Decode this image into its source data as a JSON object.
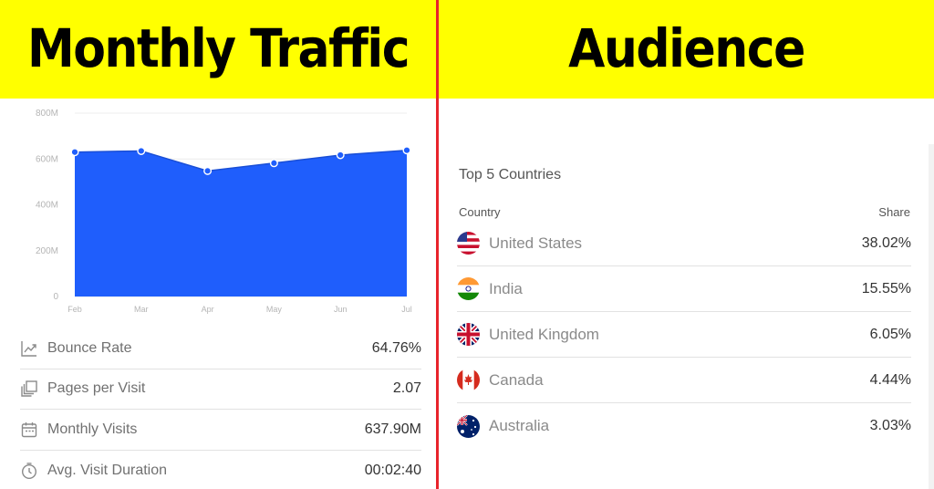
{
  "left_banner": {
    "title": "Monthly Traffic"
  },
  "right_banner": {
    "title": "Audience"
  },
  "chart_data": {
    "type": "area",
    "categories": [
      "Feb",
      "Mar",
      "Apr",
      "May",
      "Jun",
      "Jul"
    ],
    "values": [
      630,
      635,
      548,
      582,
      617,
      638
    ],
    "yticks": [
      "0",
      "200M",
      "400M",
      "600M",
      "800M"
    ],
    "ylim": [
      0,
      800
    ],
    "unit": "M",
    "grid": true,
    "color": "#1f5efc"
  },
  "metrics": [
    {
      "icon": "trend-line-icon",
      "label": "Bounce Rate",
      "value": "64.76%"
    },
    {
      "icon": "pages-stack-icon",
      "label": "Pages per Visit",
      "value": "2.07"
    },
    {
      "icon": "calendar-icon",
      "label": "Monthly Visits",
      "value": "637.90M"
    },
    {
      "icon": "clock-icon",
      "label": "Avg. Visit Duration",
      "value": "00:02:40"
    }
  ],
  "audience": {
    "title": "Top 5 Countries",
    "col_country": "Country",
    "col_share": "Share",
    "rows": [
      {
        "flag": "us-flag-icon",
        "country": "United States",
        "share": "38.02%"
      },
      {
        "flag": "india-flag-icon",
        "country": "India",
        "share": "15.55%"
      },
      {
        "flag": "uk-flag-icon",
        "country": "United Kingdom",
        "share": "6.05%"
      },
      {
        "flag": "canada-flag-icon",
        "country": "Canada",
        "share": "4.44%"
      },
      {
        "flag": "australia-flag-icon",
        "country": "Australia",
        "share": "3.03%"
      }
    ]
  }
}
